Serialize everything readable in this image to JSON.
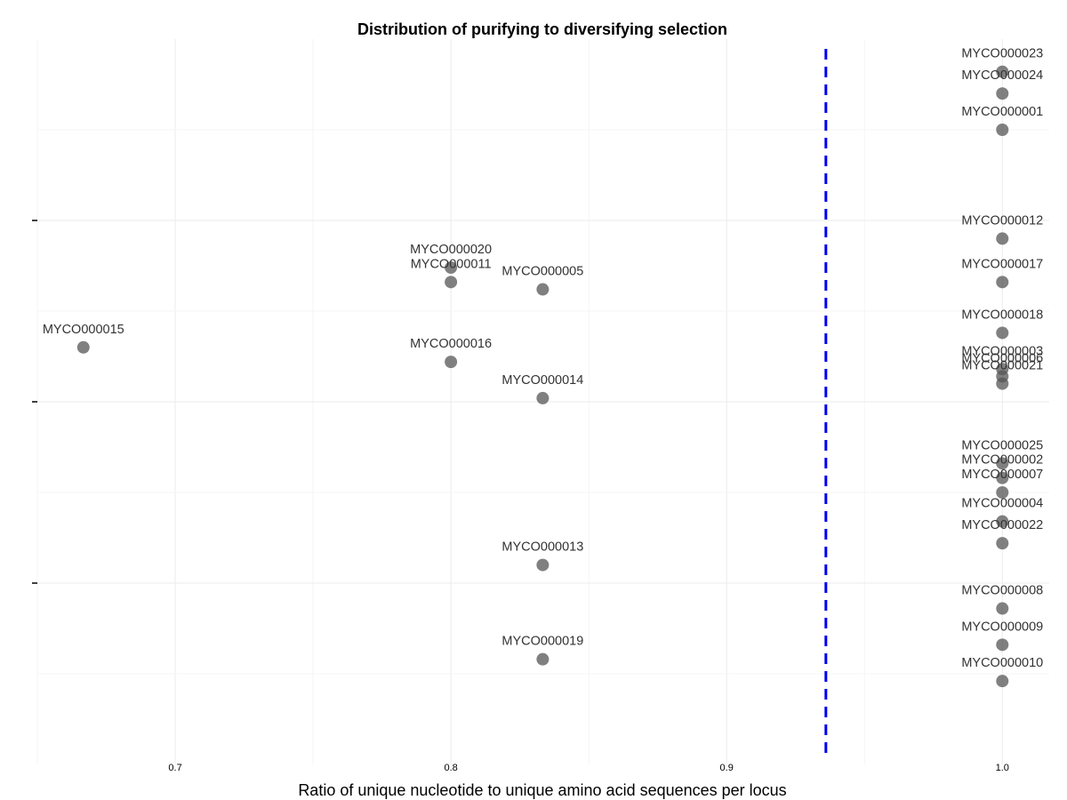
{
  "chart_data": {
    "type": "scatter",
    "title": "Distribution of purifying to diversifying selection",
    "xlabel": "Ratio of unique nucleotide to unique amino acid sequences per locus",
    "ylabel": "",
    "xlim": [
      0.65,
      1.017
    ],
    "ylim": [
      0,
      1
    ],
    "x_ticks": [
      0.7,
      0.8,
      0.9,
      1.0
    ],
    "x_tick_labels": [
      "0.7",
      "0.8",
      "0.9",
      "1.0"
    ],
    "y_tick_labels": [],
    "y_axis_values_shown": false,
    "grid": true,
    "reference_line": {
      "x": 0.936,
      "style": "dashed",
      "color": "#0000ee"
    },
    "point_color": "#555555",
    "points": [
      {
        "label": "MYCO000023",
        "x": 1.0,
        "y": 0.955
      },
      {
        "label": "MYCO000024",
        "x": 1.0,
        "y": 0.925
      },
      {
        "label": "MYCO000001",
        "x": 1.0,
        "y": 0.875
      },
      {
        "label": "MYCO000012",
        "x": 1.0,
        "y": 0.725
      },
      {
        "label": "MYCO000017",
        "x": 1.0,
        "y": 0.665
      },
      {
        "label": "MYCO000018",
        "x": 1.0,
        "y": 0.595
      },
      {
        "label": "MYCO000003",
        "x": 1.0,
        "y": 0.545
      },
      {
        "label": "MYCO000006",
        "x": 1.0,
        "y": 0.535
      },
      {
        "label": "MYCO000021",
        "x": 1.0,
        "y": 0.525
      },
      {
        "label": "MYCO000025",
        "x": 1.0,
        "y": 0.415
      },
      {
        "label": "MYCO000002",
        "x": 1.0,
        "y": 0.395
      },
      {
        "label": "MYCO000007",
        "x": 1.0,
        "y": 0.375
      },
      {
        "label": "MYCO000004",
        "x": 1.0,
        "y": 0.335
      },
      {
        "label": "MYCO000022",
        "x": 1.0,
        "y": 0.305
      },
      {
        "label": "MYCO000008",
        "x": 1.0,
        "y": 0.215
      },
      {
        "label": "MYCO000009",
        "x": 1.0,
        "y": 0.165
      },
      {
        "label": "MYCO000010",
        "x": 1.0,
        "y": 0.115
      },
      {
        "label": "MYCO000020",
        "x": 0.8,
        "y": 0.685
      },
      {
        "label": "MYCO000011",
        "x": 0.8,
        "y": 0.665
      },
      {
        "label": "MYCO000005",
        "x": 0.8333,
        "y": 0.655
      },
      {
        "label": "MYCO000015",
        "x": 0.6667,
        "y": 0.575
      },
      {
        "label": "MYCO000016",
        "x": 0.8,
        "y": 0.555
      },
      {
        "label": "MYCO000014",
        "x": 0.8333,
        "y": 0.505
      },
      {
        "label": "MYCO000013",
        "x": 0.8333,
        "y": 0.275
      },
      {
        "label": "MYCO000019",
        "x": 0.8333,
        "y": 0.145
      }
    ]
  }
}
